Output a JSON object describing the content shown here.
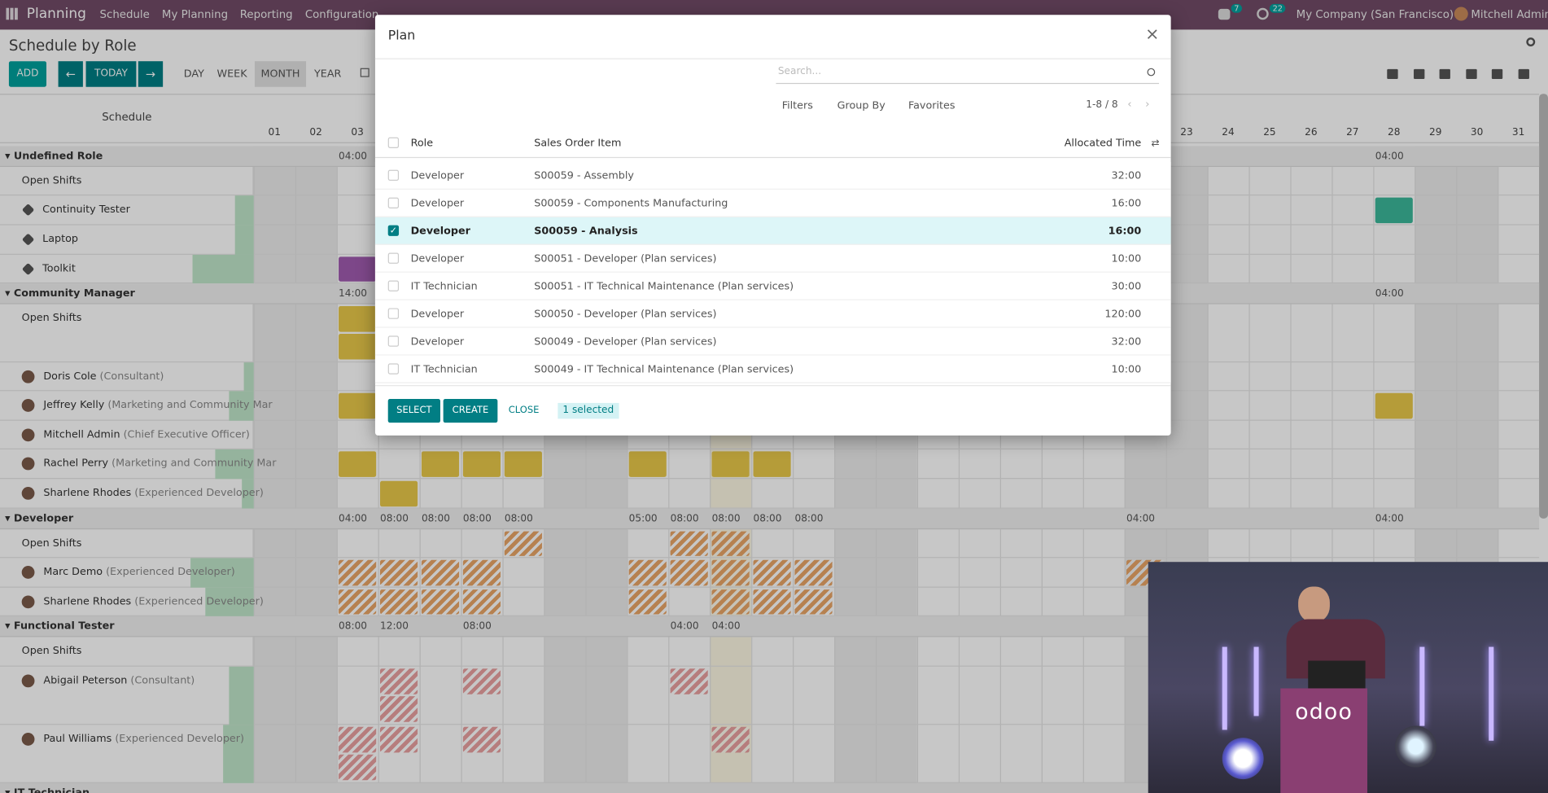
{
  "navbar": {
    "app": "Planning",
    "menu": [
      "Schedule",
      "My Planning",
      "Reporting",
      "Configuration"
    ],
    "messages": "7",
    "activities": "22",
    "company": "My Company (San Francisco)",
    "user": "Mitchell Admin"
  },
  "control": {
    "title": "Schedule by Role",
    "add": "ADD",
    "today": "TODAY",
    "scales": [
      "DAY",
      "WEEK",
      "MONTH",
      "YEAR"
    ]
  },
  "gantt": {
    "header": "Schedule",
    "days": [
      "01",
      "02",
      "03",
      "23",
      "24",
      "25",
      "26",
      "27",
      "28",
      "29",
      "30",
      "31"
    ],
    "groups": [
      {
        "name": "Undefined Role",
        "hours": [
          "04:00",
          "04:00"
        ],
        "rows": [
          {
            "name": "Open Shifts"
          },
          {
            "name": "Continuity Tester"
          },
          {
            "name": "Laptop"
          },
          {
            "name": "Toolkit"
          }
        ]
      },
      {
        "name": "Community Manager",
        "hours": [
          "14:00",
          "04:00"
        ],
        "rows": [
          {
            "name": "Open Shifts"
          },
          {
            "name": "Doris Cole",
            "detail": "(Consultant)"
          },
          {
            "name": "Jeffrey Kelly",
            "detail": "(Marketing and Community Mar"
          },
          {
            "name": "Mitchell Admin",
            "detail": "(Chief Executive Officer)"
          },
          {
            "name": "Rachel Perry",
            "detail": "(Marketing and Community Mar"
          },
          {
            "name": "Sharlene Rhodes",
            "detail": "(Experienced Developer)"
          }
        ]
      },
      {
        "name": "Developer",
        "hours": [
          "04:00",
          "08:00",
          "08:00",
          "08:00",
          "08:00",
          "05:00",
          "08:00",
          "08:00",
          "08:00",
          "08:00",
          "04:00",
          "04:00"
        ],
        "rows": [
          {
            "name": "Open Shifts"
          },
          {
            "name": "Marc Demo",
            "detail": "(Experienced Developer)"
          },
          {
            "name": "Sharlene Rhodes",
            "detail": "(Experienced Developer)"
          }
        ]
      },
      {
        "name": "Functional Tester",
        "hours": [
          "08:00",
          "12:00",
          "08:00",
          "04:00",
          "04:00"
        ],
        "rows": [
          {
            "name": "Open Shifts"
          },
          {
            "name": "Abigail Peterson",
            "detail": "(Consultant)"
          },
          {
            "name": "Paul Williams",
            "detail": "(Experienced Developer)"
          }
        ]
      },
      {
        "name": "IT Technician",
        "hours": [],
        "rows": []
      }
    ]
  },
  "dialog": {
    "title": "Plan",
    "search": "Search...",
    "filters": "Filters",
    "group_by": "Group By",
    "favorites": "Favorites",
    "pager": "1-8 / 8",
    "columns": [
      "Role",
      "Sales Order Item",
      "Allocated Time"
    ],
    "rows": [
      [
        "Developer",
        "S00059 - Assembly",
        "32:00"
      ],
      [
        "Developer",
        "S00059 - Components Manufacturing",
        "16:00"
      ],
      [
        "Developer",
        "S00059 - Analysis",
        "16:00"
      ],
      [
        "Developer",
        "S00051 - Developer (Plan services)",
        "10:00"
      ],
      [
        "IT Technician",
        "S00051 - IT Technical Maintenance (Plan services)",
        "30:00"
      ],
      [
        "Developer",
        "S00050 - Developer (Plan services)",
        "120:00"
      ],
      [
        "Developer",
        "S00049 - Developer (Plan services)",
        "32:00"
      ],
      [
        "IT Technician",
        "S00049 - IT Technical Maintenance (Plan services)",
        "10:00"
      ]
    ],
    "buttons": [
      "SELECT",
      "CREATE",
      "CLOSE"
    ],
    "selection": "1 selected"
  },
  "video": {
    "logo": "odoo"
  }
}
